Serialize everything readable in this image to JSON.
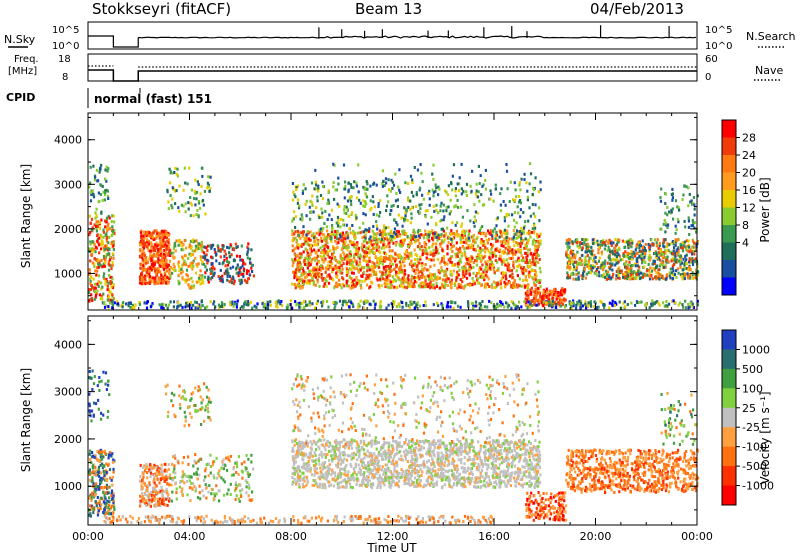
{
  "header": {
    "station": "Stokkseyri (fitACF)",
    "beam": "Beam 13",
    "date": "04/Feb/2013"
  },
  "top_strip": {
    "nsky_label": "N.Sky",
    "nsky_ticks": [
      "10^5",
      "10^0"
    ],
    "nsearch_label": "N.Search",
    "nsearch_ticks": [
      "10^5",
      "10^0"
    ],
    "freq_label_1": "Freq.",
    "freq_label_2": "[MHz]",
    "freq_ticks": [
      "18",
      "8"
    ],
    "nave_label": "Nave",
    "nave_ticks": [
      "60",
      "0"
    ],
    "cpid_label": "CPID",
    "cpid_value": "normal (fast) 151"
  },
  "chart_data": [
    {
      "type": "heatmap",
      "name": "power",
      "ylabel": "Slant Range [km]",
      "xlabel": "Time UT",
      "x_ticks": [
        "00:00",
        "04:00",
        "08:00",
        "12:00",
        "16:00",
        "20:00",
        "00:00"
      ],
      "y_ticks": [
        "1000",
        "2000",
        "3000",
        "4000"
      ],
      "ylim": [
        180,
        4600
      ],
      "colorbar_label": "Power [dB]",
      "colorbar_ticks": [
        "28",
        "24",
        "20",
        "16",
        "12",
        "8",
        "4"
      ],
      "colorbar_colors": [
        "#ff0000",
        "#f03c0a",
        "#ff7a10",
        "#ff9c20",
        "#e8cc00",
        "#8acc30",
        "#3a9b50",
        "#1f6e5a",
        "#1a4ea0",
        "#0000ff"
      ]
    },
    {
      "type": "heatmap",
      "name": "velocity",
      "ylabel": "Slant Range [km]",
      "xlabel": "Time UT",
      "x_ticks": [
        "00:00",
        "04:00",
        "08:00",
        "12:00",
        "16:00",
        "20:00",
        "00:00"
      ],
      "y_ticks": [
        "1000",
        "2000",
        "3000",
        "4000"
      ],
      "ylim": [
        180,
        4600
      ],
      "colorbar_label": "Velocity [m s⁻¹]",
      "colorbar_ticks": [
        "1000",
        "500",
        "100",
        "25",
        "-25",
        "-100",
        "-500",
        "-1000"
      ],
      "colorbar_colors": [
        "#2040c0",
        "#2a6e70",
        "#40a040",
        "#80d040",
        "#c0c0c0",
        "#ffa040",
        "#ff7010",
        "#ff3000",
        "#ff0000"
      ]
    }
  ],
  "x_axis_title": "Time UT"
}
